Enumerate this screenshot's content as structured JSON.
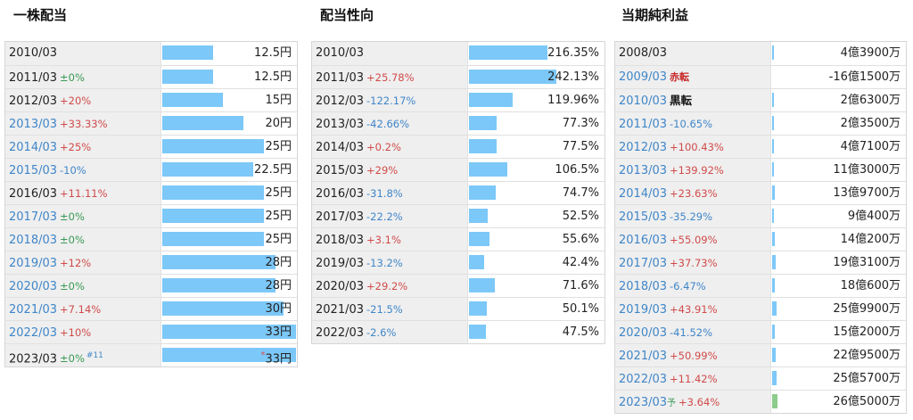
{
  "panels": [
    {
      "title": "一株配当",
      "max_value": 33,
      "rows": [
        {
          "year": "2010/03",
          "year_blue": false,
          "change": "",
          "change_dir": "",
          "value": "12.5円",
          "bar": 12.5
        },
        {
          "year": "2011/03",
          "year_blue": false,
          "change": "±0%",
          "change_dir": "zero",
          "value": "12.5円",
          "bar": 12.5
        },
        {
          "year": "2012/03",
          "year_blue": false,
          "change": "+20%",
          "change_dir": "pos",
          "value": "15円",
          "bar": 15
        },
        {
          "year": "2013/03",
          "year_blue": true,
          "change": "+33.33%",
          "change_dir": "pos",
          "value": "20円",
          "bar": 20
        },
        {
          "year": "2014/03",
          "year_blue": true,
          "change": "+25%",
          "change_dir": "pos",
          "value": "25円",
          "bar": 25
        },
        {
          "year": "2015/03",
          "year_blue": true,
          "change": "-10%",
          "change_dir": "neg",
          "value": "22.5円",
          "bar": 22.5
        },
        {
          "year": "2016/03",
          "year_blue": false,
          "change": "+11.11%",
          "change_dir": "pos",
          "value": "25円",
          "bar": 25
        },
        {
          "year": "2017/03",
          "year_blue": true,
          "change": "±0%",
          "change_dir": "zero",
          "value": "25円",
          "bar": 25
        },
        {
          "year": "2018/03",
          "year_blue": true,
          "change": "±0%",
          "change_dir": "zero",
          "value": "25円",
          "bar": 25
        },
        {
          "year": "2019/03",
          "year_blue": true,
          "change": "+12%",
          "change_dir": "pos",
          "value": "28円",
          "bar": 28
        },
        {
          "year": "2020/03",
          "year_blue": true,
          "change": "±0%",
          "change_dir": "zero",
          "value": "28円",
          "bar": 28
        },
        {
          "year": "2021/03",
          "year_blue": true,
          "change": "+7.14%",
          "change_dir": "pos",
          "value": "30円",
          "bar": 30
        },
        {
          "year": "2022/03",
          "year_blue": true,
          "change": "+10%",
          "change_dir": "pos",
          "value": "33円",
          "bar": 33
        },
        {
          "year": "2023/03",
          "year_blue": false,
          "change": "±0%",
          "change_dir": "zero",
          "note": "#11",
          "value": "33円",
          "value_prefix": "*",
          "bar": 33
        }
      ]
    },
    {
      "title": "配当性向",
      "max_value": 242.13,
      "rows": [
        {
          "year": "2010/03",
          "year_blue": false,
          "change": "",
          "change_dir": "",
          "value": "216.35%",
          "bar": 216.35
        },
        {
          "year": "2011/03",
          "year_blue": false,
          "change": "+25.78%",
          "change_dir": "pos",
          "value": "242.13%",
          "bar": 242.13
        },
        {
          "year": "2012/03",
          "year_blue": false,
          "change": "-122.17%",
          "change_dir": "neg",
          "value": "119.96%",
          "bar": 119.96
        },
        {
          "year": "2013/03",
          "year_blue": false,
          "change": "-42.66%",
          "change_dir": "neg",
          "value": "77.3%",
          "bar": 77.3
        },
        {
          "year": "2014/03",
          "year_blue": false,
          "change": "+0.2%",
          "change_dir": "pos",
          "value": "77.5%",
          "bar": 77.5
        },
        {
          "year": "2015/03",
          "year_blue": false,
          "change": "+29%",
          "change_dir": "pos",
          "value": "106.5%",
          "bar": 106.5
        },
        {
          "year": "2016/03",
          "year_blue": false,
          "change": "-31.8%",
          "change_dir": "neg",
          "value": "74.7%",
          "bar": 74.7
        },
        {
          "year": "2017/03",
          "year_blue": false,
          "change": "-22.2%",
          "change_dir": "neg",
          "value": "52.5%",
          "bar": 52.5
        },
        {
          "year": "2018/03",
          "year_blue": false,
          "change": "+3.1%",
          "change_dir": "pos",
          "value": "55.6%",
          "bar": 55.6
        },
        {
          "year": "2019/03",
          "year_blue": false,
          "change": "-13.2%",
          "change_dir": "neg",
          "value": "42.4%",
          "bar": 42.4
        },
        {
          "year": "2020/03",
          "year_blue": false,
          "change": "+29.2%",
          "change_dir": "pos",
          "value": "71.6%",
          "bar": 71.6
        },
        {
          "year": "2021/03",
          "year_blue": false,
          "change": "-21.5%",
          "change_dir": "neg",
          "value": "50.1%",
          "bar": 50.1
        },
        {
          "year": "2022/03",
          "year_blue": false,
          "change": "-2.6%",
          "change_dir": "neg",
          "value": "47.5%",
          "bar": 47.5
        }
      ]
    },
    {
      "title": "当期純利益",
      "max_value": 259900,
      "rows": [
        {
          "year": "2008/03",
          "year_blue": false,
          "change": "",
          "change_dir": "",
          "value": "4億3900万",
          "bar": 43900
        },
        {
          "year": "2009/03",
          "year_blue": true,
          "tag": "赤転",
          "tag_style": "red",
          "change": "",
          "change_dir": "",
          "value": "-16億1500万",
          "bar": 0
        },
        {
          "year": "2010/03",
          "year_blue": true,
          "tag": "黒転",
          "tag_style": "black",
          "change": "",
          "change_dir": "",
          "value": "2億6300万",
          "bar": 26300
        },
        {
          "year": "2011/03",
          "year_blue": true,
          "change": "-10.65%",
          "change_dir": "neg",
          "value": "2億3500万",
          "bar": 23500
        },
        {
          "year": "2012/03",
          "year_blue": true,
          "change": "+100.43%",
          "change_dir": "pos",
          "value": "4億7100万",
          "bar": 47100
        },
        {
          "year": "2013/03",
          "year_blue": true,
          "change": "+139.92%",
          "change_dir": "pos",
          "value": "11億3000万",
          "bar": 113000
        },
        {
          "year": "2014/03",
          "year_blue": true,
          "change": "+23.63%",
          "change_dir": "pos",
          "value": "13億9700万",
          "bar": 139700
        },
        {
          "year": "2015/03",
          "year_blue": true,
          "change": "-35.29%",
          "change_dir": "neg",
          "value": "9億400万",
          "bar": 90400
        },
        {
          "year": "2016/03",
          "year_blue": true,
          "change": "+55.09%",
          "change_dir": "pos",
          "value": "14億200万",
          "bar": 140200
        },
        {
          "year": "2017/03",
          "year_blue": true,
          "change": "+37.73%",
          "change_dir": "pos",
          "value": "19億3100万",
          "bar": 193100
        },
        {
          "year": "2018/03",
          "year_blue": true,
          "change": "-6.47%",
          "change_dir": "neg",
          "value": "18億600万",
          "bar": 180600
        },
        {
          "year": "2019/03",
          "year_blue": true,
          "change": "+43.91%",
          "change_dir": "pos",
          "value": "25億9900万",
          "bar": 259900
        },
        {
          "year": "2020/03",
          "year_blue": true,
          "change": "-41.52%",
          "change_dir": "neg",
          "value": "15億2000万",
          "bar": 152000
        },
        {
          "year": "2021/03",
          "year_blue": true,
          "change": "+50.99%",
          "change_dir": "pos",
          "value": "22億9500万",
          "bar": 229500
        },
        {
          "year": "2022/03",
          "year_blue": true,
          "change": "+11.42%",
          "change_dir": "pos",
          "value": "25億5700万",
          "bar": 255700
        },
        {
          "year": "2023/03",
          "year_blue": true,
          "tag": "予",
          "tag_style": "yo",
          "change": "+3.64%",
          "change_dir": "pos",
          "value": "26億5000万",
          "bar": 265000,
          "bar_color": "green"
        }
      ]
    }
  ]
}
